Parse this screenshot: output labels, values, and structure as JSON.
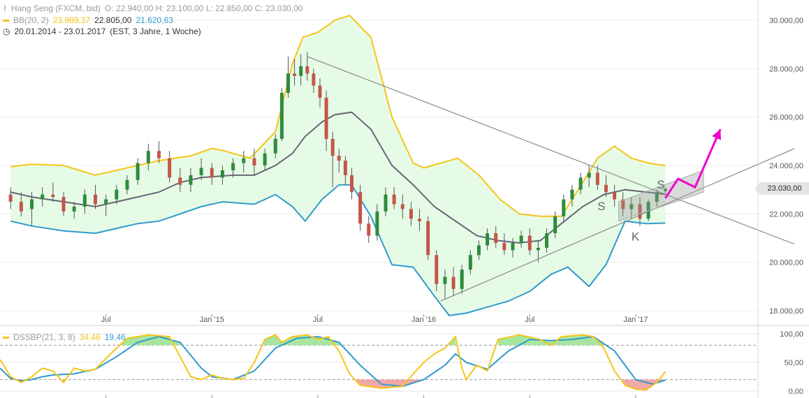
{
  "header": {
    "instrument": "Hang Seng (FXCM, bid)",
    "ohlc": "O: 22.940,00  H: 23.100,00  L: 22.850,00  C: 23.030,00",
    "bb_label": "BB(20, 2)",
    "bb_upper": "23.989,37",
    "bb_middle": "22.805,00",
    "bb_lower": "21.620,63",
    "range": "20.01.2014 - 23.01.2017",
    "range_note": "(EST, 3 Jahre, 1 Woche)"
  },
  "osc_legend": {
    "label": "DSSBP(21, 3, 8)",
    "value1": "34,46",
    "value2": "19,46"
  },
  "price_badge": "23.030,00",
  "annotations": [
    "S",
    "S",
    "K"
  ],
  "colors": {
    "bb_band": "#f5c518",
    "bb_fill": "#e6fbe6",
    "bb_lower": "#2f9bcc",
    "sma": "#666677",
    "candle_up": "#2e8b3e",
    "candle_down": "#c4564a",
    "projection": "#ee00cc",
    "osc_fast": "#f5c518",
    "osc_slow": "#2f9bcc",
    "osc_high_fill": "#a8e6a0",
    "osc_low_fill": "#f0a8a8"
  },
  "chart_data": {
    "type": "candlestick",
    "y_ticks": [
      "30.000,00",
      "28.000,00",
      "26.000,00",
      "24.000,00",
      "22.000,00",
      "20.000,00",
      "18.000,00"
    ],
    "ylim": [
      17500,
      30700
    ],
    "x_ticks": [
      "Jul",
      "Jan '15",
      "Jul",
      "Jan '16",
      "Jul",
      "Jan '17"
    ],
    "bollinger_upper": [
      [
        2014.05,
        23950
      ],
      [
        2014.15,
        24050
      ],
      [
        2014.3,
        24000
      ],
      [
        2014.45,
        23600
      ],
      [
        2014.55,
        23800
      ],
      [
        2014.75,
        24200
      ],
      [
        2014.9,
        24400
      ],
      [
        2015.0,
        24700
      ],
      [
        2015.06,
        24600
      ],
      [
        2015.18,
        24300
      ],
      [
        2015.3,
        25400
      ],
      [
        2015.38,
        28200
      ],
      [
        2015.43,
        29300
      ],
      [
        2015.5,
        29500
      ],
      [
        2015.58,
        30000
      ],
      [
        2015.65,
        30200
      ],
      [
        2015.75,
        29300
      ],
      [
        2015.85,
        26000
      ],
      [
        2015.95,
        24100
      ],
      [
        2016.0,
        23900
      ],
      [
        2016.08,
        24100
      ],
      [
        2016.16,
        24300
      ],
      [
        2016.26,
        23600
      ],
      [
        2016.36,
        22600
      ],
      [
        2016.45,
        22000
      ],
      [
        2016.55,
        21900
      ],
      [
        2016.65,
        21900
      ],
      [
        2016.75,
        23300
      ],
      [
        2016.82,
        24300
      ],
      [
        2016.9,
        24800
      ],
      [
        2016.98,
        24300
      ],
      [
        2017.06,
        24100
      ],
      [
        2017.14,
        23990
      ]
    ],
    "bollinger_middle": [
      [
        2014.05,
        22900
      ],
      [
        2014.15,
        22700
      ],
      [
        2014.3,
        22500
      ],
      [
        2014.45,
        22300
      ],
      [
        2014.55,
        22500
      ],
      [
        2014.65,
        22700
      ],
      [
        2014.75,
        22900
      ],
      [
        2014.85,
        23300
      ],
      [
        2014.95,
        23500
      ],
      [
        2015.1,
        23600
      ],
      [
        2015.2,
        23600
      ],
      [
        2015.3,
        24000
      ],
      [
        2015.38,
        24500
      ],
      [
        2015.44,
        25200
      ],
      [
        2015.52,
        25800
      ],
      [
        2015.58,
        26100
      ],
      [
        2015.66,
        26200
      ],
      [
        2015.75,
        25500
      ],
      [
        2015.85,
        24000
      ],
      [
        2015.95,
        23200
      ],
      [
        2016.05,
        22300
      ],
      [
        2016.15,
        21700
      ],
      [
        2016.25,
        21100
      ],
      [
        2016.35,
        20900
      ],
      [
        2016.45,
        20800
      ],
      [
        2016.55,
        20900
      ],
      [
        2016.65,
        21600
      ],
      [
        2016.75,
        22300
      ],
      [
        2016.85,
        22800
      ],
      [
        2016.95,
        23000
      ],
      [
        2017.05,
        22900
      ],
      [
        2017.14,
        22805
      ]
    ],
    "bollinger_lower": [
      [
        2014.05,
        21700
      ],
      [
        2014.15,
        21500
      ],
      [
        2014.3,
        21300
      ],
      [
        2014.45,
        21200
      ],
      [
        2014.55,
        21400
      ],
      [
        2014.65,
        21600
      ],
      [
        2014.75,
        21700
      ],
      [
        2014.85,
        22000
      ],
      [
        2014.95,
        22300
      ],
      [
        2015.05,
        22500
      ],
      [
        2015.2,
        22400
      ],
      [
        2015.3,
        22800
      ],
      [
        2015.38,
        22300
      ],
      [
        2015.44,
        21700
      ],
      [
        2015.52,
        22600
      ],
      [
        2015.6,
        23200
      ],
      [
        2015.66,
        23200
      ],
      [
        2015.75,
        21900
      ],
      [
        2015.85,
        19900
      ],
      [
        2015.95,
        19800
      ],
      [
        2016.05,
        18600
      ],
      [
        2016.12,
        17800
      ],
      [
        2016.2,
        17900
      ],
      [
        2016.32,
        18200
      ],
      [
        2016.4,
        18400
      ],
      [
        2016.5,
        18800
      ],
      [
        2016.6,
        19500
      ],
      [
        2016.68,
        19800
      ],
      [
        2016.78,
        19000
      ],
      [
        2016.86,
        19900
      ],
      [
        2016.95,
        21700
      ],
      [
        2017.05,
        21600
      ],
      [
        2017.14,
        21620
      ]
    ],
    "candles": [
      [
        2014.05,
        22800,
        23100,
        22200,
        22500
      ],
      [
        2014.1,
        22500,
        22900,
        21900,
        22100
      ],
      [
        2014.15,
        22200,
        22900,
        21500,
        22600
      ],
      [
        2014.2,
        22600,
        23100,
        22300,
        22800
      ],
      [
        2014.25,
        22800,
        23300,
        22500,
        22700
      ],
      [
        2014.3,
        22700,
        22900,
        21900,
        22100
      ],
      [
        2014.35,
        22100,
        22500,
        21800,
        22300
      ],
      [
        2014.4,
        22300,
        23000,
        22000,
        22800
      ],
      [
        2014.45,
        22800,
        23200,
        22200,
        22400
      ],
      [
        2014.5,
        22400,
        22800,
        21900,
        22600
      ],
      [
        2014.55,
        22600,
        23200,
        22400,
        23000
      ],
      [
        2014.6,
        23000,
        23600,
        22800,
        23400
      ],
      [
        2014.65,
        23400,
        24300,
        23200,
        24100
      ],
      [
        2014.7,
        24100,
        24900,
        23800,
        24600
      ],
      [
        2014.75,
        24600,
        25000,
        24100,
        24300
      ],
      [
        2014.8,
        24300,
        24600,
        23300,
        23500
      ],
      [
        2014.85,
        23500,
        23900,
        22900,
        23200
      ],
      [
        2014.9,
        23200,
        23900,
        22900,
        23600
      ],
      [
        2014.95,
        23600,
        24300,
        23400,
        23900
      ],
      [
        2015.0,
        23900,
        24100,
        23200,
        23500
      ],
      [
        2015.05,
        23500,
        24000,
        23200,
        23800
      ],
      [
        2015.1,
        23800,
        24300,
        23500,
        24100
      ],
      [
        2015.15,
        24100,
        24600,
        23700,
        24300
      ],
      [
        2015.2,
        24300,
        24700,
        23600,
        24000
      ],
      [
        2015.25,
        24000,
        24700,
        23800,
        24500
      ],
      [
        2015.3,
        24500,
        25300,
        24300,
        25100
      ],
      [
        2015.33,
        25100,
        27200,
        25000,
        27000
      ],
      [
        2015.36,
        27000,
        28500,
        26800,
        27800
      ],
      [
        2015.39,
        27800,
        28400,
        27300,
        27700
      ],
      [
        2015.42,
        27700,
        28600,
        27300,
        28100
      ],
      [
        2015.45,
        28100,
        28700,
        27500,
        27800
      ],
      [
        2015.48,
        27800,
        28000,
        27000,
        27300
      ],
      [
        2015.51,
        27300,
        27600,
        26400,
        26800
      ],
      [
        2015.54,
        26800,
        27100,
        24600,
        25100
      ],
      [
        2015.57,
        25100,
        25400,
        23100,
        24400
      ],
      [
        2015.6,
        24400,
        24700,
        23700,
        24200
      ],
      [
        2015.63,
        24200,
        24400,
        23200,
        23600
      ],
      [
        2015.66,
        23600,
        23900,
        22600,
        22900
      ],
      [
        2015.7,
        22900,
        23200,
        21300,
        21600
      ],
      [
        2015.74,
        21600,
        21900,
        20800,
        21100
      ],
      [
        2015.78,
        21100,
        22400,
        20900,
        22100
      ],
      [
        2015.82,
        22100,
        23100,
        21900,
        22800
      ],
      [
        2015.86,
        22800,
        23100,
        22200,
        22400
      ],
      [
        2015.9,
        22400,
        22800,
        21800,
        22200
      ],
      [
        2015.94,
        22200,
        22500,
        21500,
        21800
      ],
      [
        2015.98,
        21800,
        22200,
        21300,
        21700
      ],
      [
        2016.02,
        21700,
        21900,
        20100,
        20300
      ],
      [
        2016.06,
        20300,
        20500,
        18800,
        19100
      ],
      [
        2016.1,
        19100,
        19700,
        18500,
        19400
      ],
      [
        2016.14,
        19400,
        19800,
        18600,
        18900
      ],
      [
        2016.18,
        18900,
        19900,
        18700,
        19700
      ],
      [
        2016.22,
        19700,
        20500,
        19500,
        20300
      ],
      [
        2016.26,
        20300,
        20900,
        20100,
        20700
      ],
      [
        2016.3,
        20700,
        21400,
        20500,
        21200
      ],
      [
        2016.34,
        21200,
        21500,
        20600,
        20800
      ],
      [
        2016.38,
        20800,
        21200,
        20300,
        20500
      ],
      [
        2016.42,
        20500,
        21000,
        20200,
        20800
      ],
      [
        2016.46,
        20800,
        21300,
        20600,
        21100
      ],
      [
        2016.5,
        21100,
        21400,
        20300,
        20500
      ],
      [
        2016.54,
        20500,
        20900,
        20000,
        20600
      ],
      [
        2016.58,
        20600,
        21400,
        20400,
        21200
      ],
      [
        2016.62,
        21200,
        22100,
        21000,
        21900
      ],
      [
        2016.66,
        21900,
        22800,
        21700,
        22600
      ],
      [
        2016.7,
        22600,
        23200,
        22300,
        23000
      ],
      [
        2016.74,
        23000,
        23700,
        22800,
        23500
      ],
      [
        2016.78,
        23500,
        24000,
        23100,
        23700
      ],
      [
        2016.82,
        23700,
        24000,
        23000,
        23200
      ],
      [
        2016.86,
        23200,
        23600,
        22700,
        22900
      ],
      [
        2016.9,
        22900,
        23200,
        22300,
        22600
      ],
      [
        2016.94,
        22600,
        22900,
        21900,
        22200
      ],
      [
        2016.98,
        22200,
        22700,
        21800,
        22400
      ],
      [
        2017.02,
        22400,
        22700,
        21500,
        21800
      ],
      [
        2017.06,
        21800,
        22600,
        21700,
        22500
      ],
      [
        2017.1,
        22500,
        23000,
        22300,
        22900
      ],
      [
        2017.14,
        22940,
        23100,
        22850,
        23030
      ]
    ],
    "trendlines": [
      {
        "name": "resistance",
        "from": [
          2015.45,
          28500
        ],
        "to": [
          2017.75,
          20750
        ]
      },
      {
        "name": "support",
        "from": [
          2016.08,
          18400
        ],
        "to": [
          2017.75,
          24700
        ]
      }
    ],
    "channel": {
      "points": [
        [
          2016.92,
          22500
        ],
        [
          2017.32,
          23800
        ],
        [
          2017.32,
          22900
        ],
        [
          2016.92,
          21700
        ]
      ]
    },
    "projection": [
      [
        2017.14,
        22650
      ],
      [
        2017.2,
        23450
      ],
      [
        2017.28,
        23100
      ],
      [
        2017.4,
        25500
      ]
    ],
    "oscillator": {
      "ylim": [
        0,
        100
      ],
      "y_ticks": [
        "100,00",
        "50,00",
        "0,00"
      ],
      "fast": [
        [
          2014.0,
          55
        ],
        [
          2014.05,
          25
        ],
        [
          2014.1,
          15
        ],
        [
          2014.15,
          25
        ],
        [
          2014.2,
          40
        ],
        [
          2014.25,
          35
        ],
        [
          2014.3,
          15
        ],
        [
          2014.35,
          40
        ],
        [
          2014.4,
          35
        ],
        [
          2014.45,
          38
        ],
        [
          2014.55,
          75
        ],
        [
          2014.6,
          92
        ],
        [
          2014.7,
          98
        ],
        [
          2014.8,
          95
        ],
        [
          2014.85,
          60
        ],
        [
          2014.9,
          25
        ],
        [
          2014.95,
          20
        ],
        [
          2015.0,
          28
        ],
        [
          2015.05,
          22
        ],
        [
          2015.1,
          20
        ],
        [
          2015.15,
          22
        ],
        [
          2015.2,
          50
        ],
        [
          2015.25,
          90
        ],
        [
          2015.3,
          98
        ],
        [
          2015.33,
          85
        ],
        [
          2015.38,
          95
        ],
        [
          2015.45,
          98
        ],
        [
          2015.5,
          90
        ],
        [
          2015.55,
          95
        ],
        [
          2015.6,
          70
        ],
        [
          2015.65,
          30
        ],
        [
          2015.7,
          10
        ],
        [
          2015.8,
          5
        ],
        [
          2015.9,
          8
        ],
        [
          2015.95,
          30
        ],
        [
          2016.0,
          50
        ],
        [
          2016.05,
          65
        ],
        [
          2016.1,
          75
        ],
        [
          2016.15,
          95
        ],
        [
          2016.18,
          40
        ],
        [
          2016.2,
          20
        ],
        [
          2016.25,
          45
        ],
        [
          2016.3,
          35
        ],
        [
          2016.35,
          90
        ],
        [
          2016.45,
          98
        ],
        [
          2016.55,
          90
        ],
        [
          2016.6,
          80
        ],
        [
          2016.65,
          95
        ],
        [
          2016.75,
          98
        ],
        [
          2016.8,
          95
        ],
        [
          2016.85,
          75
        ],
        [
          2016.9,
          35
        ],
        [
          2016.95,
          10
        ],
        [
          2017.0,
          3
        ],
        [
          2017.05,
          2
        ],
        [
          2017.1,
          15
        ],
        [
          2017.14,
          34
        ]
      ],
      "slow": [
        [
          2014.0,
          40
        ],
        [
          2014.05,
          22
        ],
        [
          2014.1,
          18
        ],
        [
          2014.15,
          20
        ],
        [
          2014.2,
          25
        ],
        [
          2014.25,
          28
        ],
        [
          2014.35,
          30
        ],
        [
          2014.45,
          38
        ],
        [
          2014.55,
          60
        ],
        [
          2014.65,
          85
        ],
        [
          2014.75,
          95
        ],
        [
          2014.85,
          85
        ],
        [
          2014.95,
          40
        ],
        [
          2015.0,
          25
        ],
        [
          2015.1,
          20
        ],
        [
          2015.2,
          35
        ],
        [
          2015.3,
          75
        ],
        [
          2015.4,
          92
        ],
        [
          2015.5,
          95
        ],
        [
          2015.6,
          85
        ],
        [
          2015.7,
          45
        ],
        [
          2015.8,
          12
        ],
        [
          2015.9,
          8
        ],
        [
          2016.0,
          20
        ],
        [
          2016.1,
          45
        ],
        [
          2016.15,
          65
        ],
        [
          2016.2,
          50
        ],
        [
          2016.3,
          38
        ],
        [
          2016.4,
          70
        ],
        [
          2016.5,
          90
        ],
        [
          2016.6,
          88
        ],
        [
          2016.7,
          90
        ],
        [
          2016.8,
          95
        ],
        [
          2016.9,
          70
        ],
        [
          2017.0,
          20
        ],
        [
          2017.08,
          12
        ],
        [
          2017.14,
          19
        ]
      ]
    }
  }
}
